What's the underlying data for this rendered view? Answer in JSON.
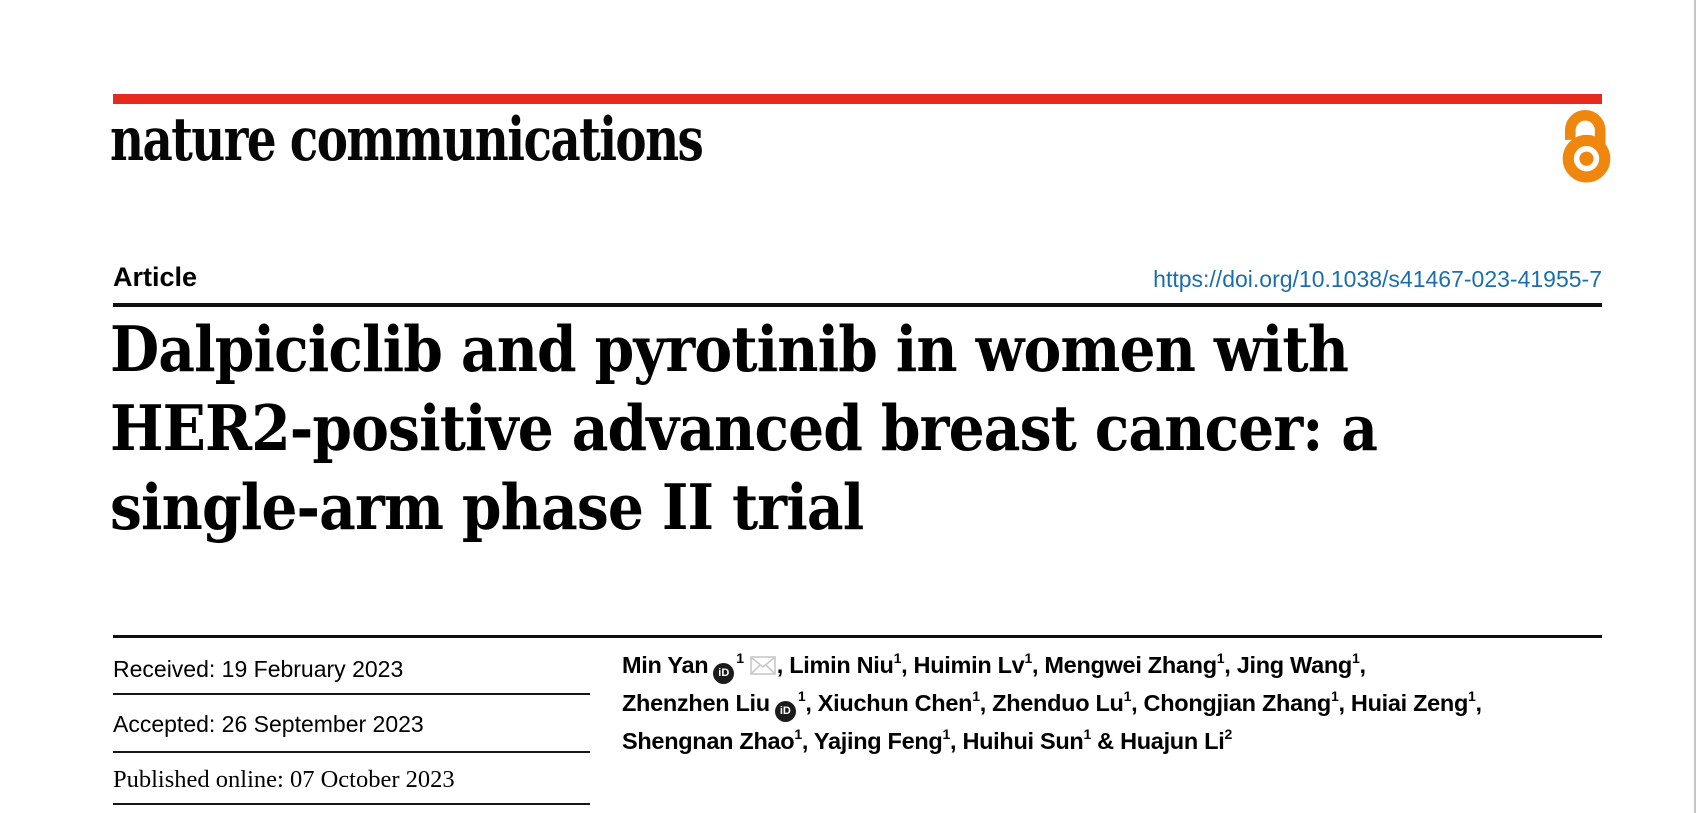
{
  "journal": {
    "wordmark": "nature communications"
  },
  "header": {
    "article_label": "Article",
    "doi": "https://doi.org/10.1038/s41467-023-41955-7"
  },
  "title": {
    "lines": [
      "Dalpiciclib and pyrotinib in women with",
      "HER2-positive advanced breast cancer: a",
      "single-arm phase II trial"
    ]
  },
  "history": {
    "received": "Received: 19 February 2023",
    "accepted": "Accepted: 26 September 2023",
    "published": "Published online: 07 October 2023"
  },
  "authors": {
    "lines": [
      [
        {
          "k": "text",
          "t": "Min Yan"
        },
        {
          "k": "orcid"
        },
        {
          "k": "sup",
          "t": "1"
        },
        {
          "k": "mail"
        },
        {
          "k": "text",
          "t": ", Limin Niu"
        },
        {
          "k": "sup",
          "t": "1"
        },
        {
          "k": "text",
          "t": ", Huimin Lv"
        },
        {
          "k": "sup",
          "t": "1"
        },
        {
          "k": "text",
          "t": ", Mengwei Zhang"
        },
        {
          "k": "sup",
          "t": "1"
        },
        {
          "k": "text",
          "t": ", Jing Wang"
        },
        {
          "k": "sup",
          "t": "1"
        },
        {
          "k": "text",
          "t": ","
        }
      ],
      [
        {
          "k": "text",
          "t": "Zhenzhen Liu"
        },
        {
          "k": "orcid"
        },
        {
          "k": "sup",
          "t": "1"
        },
        {
          "k": "text",
          "t": ", Xiuchun Chen"
        },
        {
          "k": "sup",
          "t": "1"
        },
        {
          "k": "text",
          "t": ", Zhenduo Lu"
        },
        {
          "k": "sup",
          "t": "1"
        },
        {
          "k": "text",
          "t": ", Chongjian Zhang"
        },
        {
          "k": "sup",
          "t": "1"
        },
        {
          "k": "text",
          "t": ", Huiai Zeng"
        },
        {
          "k": "sup",
          "t": "1"
        },
        {
          "k": "text",
          "t": ","
        }
      ],
      [
        {
          "k": "text",
          "t": "Shengnan Zhao"
        },
        {
          "k": "sup",
          "t": "1"
        },
        {
          "k": "text",
          "t": ", Yajing Feng"
        },
        {
          "k": "sup",
          "t": "1"
        },
        {
          "k": "text",
          "t": ", Huihui Sun"
        },
        {
          "k": "sup",
          "t": "1"
        },
        {
          "k": "text",
          "t": " & Huajun Li"
        },
        {
          "k": "sup",
          "t": "2"
        }
      ]
    ]
  },
  "icons": {
    "orcid_text": "iD"
  },
  "colors": {
    "brand_red": "#e52b1e",
    "open_access_orange": "#ef870f",
    "link_blue": "#1b6fa8",
    "mail_gray": "#c8c8c8",
    "page_edge_gray": "#c4c4c4"
  }
}
